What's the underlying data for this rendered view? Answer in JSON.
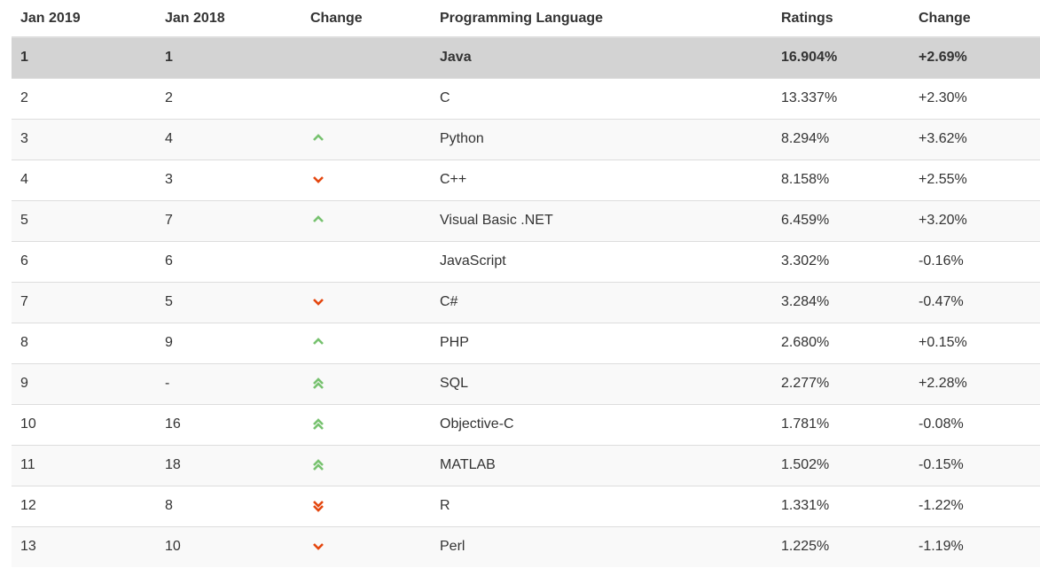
{
  "headers": [
    "Jan 2019",
    "Jan 2018",
    "Change",
    "Programming Language",
    "Ratings",
    "Change"
  ],
  "colors": {
    "up": "#77c26f",
    "down": "#e4470f",
    "highlight": "#d3d3d3"
  },
  "rows": [
    {
      "rank": "1",
      "prev": "1",
      "trend": "none",
      "language": "Java",
      "rating": "16.904%",
      "change": "+2.69%"
    },
    {
      "rank": "2",
      "prev": "2",
      "trend": "none",
      "language": "C",
      "rating": "13.337%",
      "change": "+2.30%"
    },
    {
      "rank": "3",
      "prev": "4",
      "trend": "up",
      "language": "Python",
      "rating": "8.294%",
      "change": "+3.62%"
    },
    {
      "rank": "4",
      "prev": "3",
      "trend": "down",
      "language": "C++",
      "rating": "8.158%",
      "change": "+2.55%"
    },
    {
      "rank": "5",
      "prev": "7",
      "trend": "up",
      "language": "Visual Basic .NET",
      "rating": "6.459%",
      "change": "+3.20%"
    },
    {
      "rank": "6",
      "prev": "6",
      "trend": "none",
      "language": "JavaScript",
      "rating": "3.302%",
      "change": "-0.16%"
    },
    {
      "rank": "7",
      "prev": "5",
      "trend": "down",
      "language": "C#",
      "rating": "3.284%",
      "change": "-0.47%"
    },
    {
      "rank": "8",
      "prev": "9",
      "trend": "up",
      "language": "PHP",
      "rating": "2.680%",
      "change": "+0.15%"
    },
    {
      "rank": "9",
      "prev": "-",
      "trend": "up2",
      "language": "SQL",
      "rating": "2.277%",
      "change": "+2.28%"
    },
    {
      "rank": "10",
      "prev": "16",
      "trend": "up2",
      "language": "Objective-C",
      "rating": "1.781%",
      "change": "-0.08%"
    },
    {
      "rank": "11",
      "prev": "18",
      "trend": "up2",
      "language": "MATLAB",
      "rating": "1.502%",
      "change": "-0.15%"
    },
    {
      "rank": "12",
      "prev": "8",
      "trend": "down2",
      "language": "R",
      "rating": "1.331%",
      "change": "-1.22%"
    },
    {
      "rank": "13",
      "prev": "10",
      "trend": "down",
      "language": "Perl",
      "rating": "1.225%",
      "change": "-1.19%"
    }
  ]
}
